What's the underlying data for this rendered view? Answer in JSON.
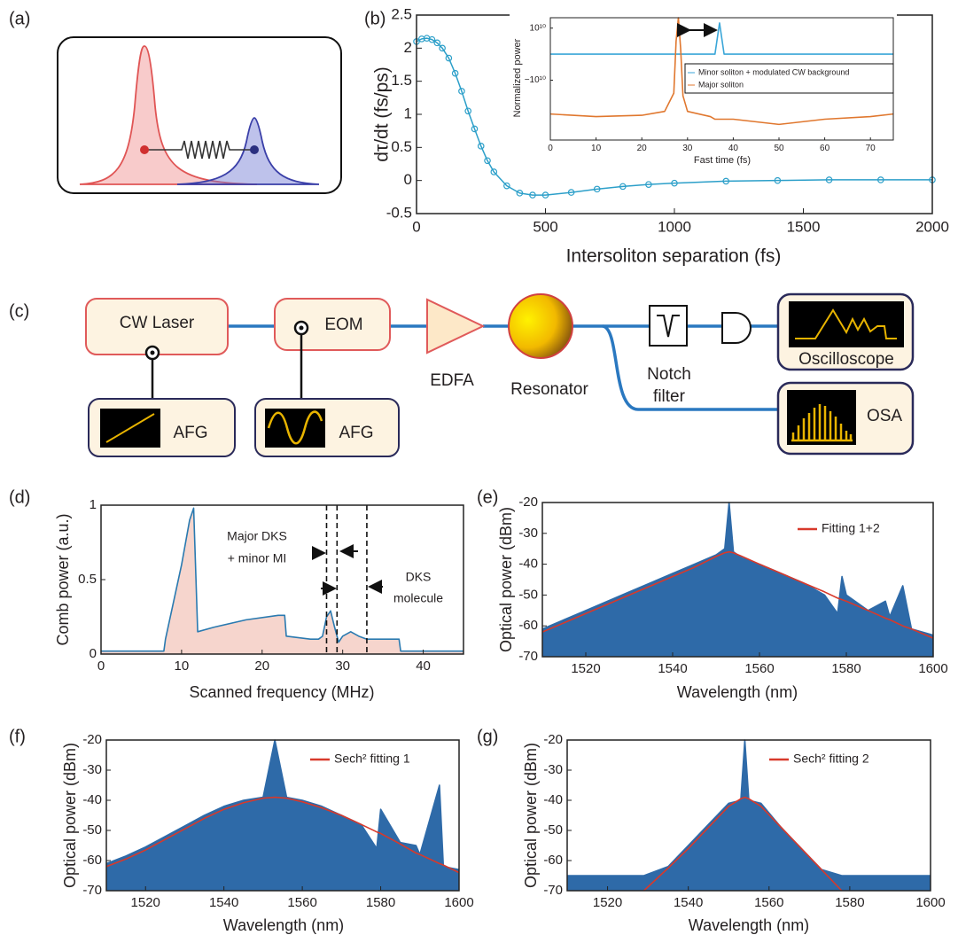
{
  "panel_labels": [
    "(a)",
    "(b)",
    "(c)",
    "(d)",
    "(e)",
    "(f)",
    "(g)"
  ],
  "diagram": {
    "cw_laser": "CW Laser",
    "eom": "EOM",
    "edfa": "EDFA",
    "resonator": "Resonator",
    "notch_filter": [
      "Notch",
      "filter"
    ],
    "oscilloscope": "Oscilloscope",
    "osa": "OSA",
    "afg_1": "AFG",
    "afg_2": "AFG"
  },
  "chart_data": [
    {
      "type": "line",
      "xlabel": "Intersoliton separation (fs)",
      "ylabel": "dτ/dt (fs/ps)",
      "xlim": [
        0,
        2000
      ],
      "ylim": [
        -0.5,
        2.5
      ],
      "xticks": [
        0,
        500,
        1000,
        1500,
        2000
      ],
      "yticks": [
        -0.5,
        0,
        0.5,
        1,
        1.5,
        2,
        2.5
      ],
      "x": [
        0,
        20,
        40,
        60,
        80,
        100,
        125,
        150,
        175,
        200,
        225,
        250,
        275,
        300,
        350,
        400,
        450,
        500,
        600,
        700,
        800,
        900,
        1000,
        1200,
        1400,
        1600,
        1800,
        2000
      ],
      "series": [
        {
          "color": "#2c9fc9",
          "marker": "circle",
          "values": [
            2.1,
            2.14,
            2.15,
            2.13,
            2.08,
            2.0,
            1.85,
            1.62,
            1.35,
            1.05,
            0.78,
            0.52,
            0.3,
            0.13,
            -0.08,
            -0.19,
            -0.22,
            -0.22,
            -0.18,
            -0.13,
            -0.09,
            -0.06,
            -0.04,
            -0.01,
            0.0,
            0.01,
            0.01,
            0.01
          ]
        }
      ]
    },
    {
      "type": "line",
      "xlabel": "Fast time (fs)",
      "ylabel": "Normalized power",
      "xlim": [
        0,
        75
      ],
      "ylim": [
        -33000000000.0,
        14000000000.0
      ],
      "xticks": [
        0,
        10,
        20,
        30,
        40,
        50,
        60,
        70
      ],
      "yticks": [
        {
          "value": 10000000000.0,
          "label": "10¹⁰"
        },
        {
          "value": -10000000000.0,
          "label": "−10¹⁰"
        }
      ],
      "x": [
        0,
        10,
        20,
        25,
        27,
        27.5,
        28,
        28.5,
        29,
        30,
        35,
        36,
        37,
        38,
        39,
        40,
        50,
        60,
        70,
        75
      ],
      "series": [
        {
          "name": "Minor soliton + modulated CW background",
          "color": "#3aa6d8",
          "values": [
            0,
            0,
            0,
            0,
            0,
            0,
            0,
            0,
            0,
            0,
            0,
            0,
            12000000000.0,
            0,
            0,
            0,
            0,
            0,
            0,
            0
          ]
        },
        {
          "name": "Major soliton",
          "color": "#e0772e",
          "values": [
            -23000000000.0,
            -24000000000.0,
            -23500000000.0,
            -22000000000.0,
            -15000000000.0,
            5000000000.0,
            14000000000.0,
            2000000000.0,
            -16000000000.0,
            -22000000000.0,
            -24000000000.0,
            -25000000000.0,
            -25000000000.0,
            -25000000000.0,
            -25000000000.0,
            -25000000000.0,
            -27000000000.0,
            -25000000000.0,
            -24000000000.0,
            -23000000000.0
          ]
        }
      ]
    },
    {
      "type": "area",
      "xlabel": "Scanned frequency  (MHz)",
      "ylabel": "Comb power (a.u.)",
      "xlim": [
        0,
        45
      ],
      "ylim": [
        0,
        1
      ],
      "xticks": [
        0,
        10,
        20,
        30,
        40
      ],
      "yticks": [
        0,
        0.5,
        1
      ],
      "vlines": [
        28,
        29.3,
        33
      ],
      "annotations": [
        [
          "Major DKS",
          "+ minor MI"
        ],
        [
          "DKS",
          "molecule"
        ]
      ],
      "x": [
        0,
        7.8,
        8,
        10,
        11,
        11.5,
        12,
        14,
        18,
        22,
        22.8,
        23,
        26,
        27,
        27.5,
        28,
        28.5,
        29,
        29.5,
        30,
        31,
        32,
        33,
        37,
        37.2,
        45
      ],
      "series": [
        {
          "color": "#2a7ab0",
          "fill": "#f5d0c8",
          "values": [
            0.02,
            0.02,
            0.1,
            0.6,
            0.9,
            0.98,
            0.15,
            0.18,
            0.23,
            0.26,
            0.26,
            0.12,
            0.1,
            0.1,
            0.12,
            0.25,
            0.29,
            0.18,
            0.08,
            0.12,
            0.15,
            0.12,
            0.1,
            0.1,
            0.02,
            0.02
          ]
        }
      ]
    },
    {
      "type": "area",
      "xlabel": "Wavelength  (nm)",
      "ylabel": "Optical power (dBm)",
      "xlim": [
        1510,
        1600
      ],
      "ylim": [
        -70,
        -20
      ],
      "xticks": [
        1520,
        1540,
        1560,
        1580,
        1600
      ],
      "yticks": [
        -70,
        -60,
        -50,
        -40,
        -30,
        -20
      ],
      "x": [
        1510,
        1515,
        1520,
        1525,
        1530,
        1535,
        1540,
        1545,
        1550,
        1552,
        1553,
        1554,
        1556,
        1560,
        1565,
        1570,
        1575,
        1578,
        1579,
        1580,
        1585,
        1589,
        1590,
        1593,
        1595,
        1600
      ],
      "series": [
        {
          "color": "#2e6aa8",
          "fill": "#2e6aa8",
          "values": [
            -61,
            -58,
            -55,
            -52,
            -49,
            -46,
            -43,
            -40,
            -37,
            -35,
            -20,
            -36,
            -38,
            -40,
            -43,
            -46,
            -50,
            -56,
            -44,
            -50,
            -55,
            -52,
            -57,
            -47,
            -61,
            -63
          ]
        },
        {
          "name": "Fitting 1+2",
          "color": "#d8392b",
          "values": [
            -62,
            -59,
            -56,
            -53,
            -50,
            -47,
            -44,
            -41,
            -37.5,
            -36.3,
            -36,
            -36.3,
            -37.5,
            -40,
            -43,
            -46,
            -49,
            -51,
            -51.5,
            -52,
            -55,
            -57.5,
            -58,
            -60,
            -61,
            -64
          ]
        }
      ]
    },
    {
      "type": "area",
      "xlabel": "Wavelength  (nm)",
      "ylabel": "Optical power (dBm)",
      "xlim": [
        1510,
        1600
      ],
      "ylim": [
        -70,
        -20
      ],
      "xticks": [
        1520,
        1540,
        1560,
        1580,
        1600
      ],
      "yticks": [
        -70,
        -60,
        -50,
        -40,
        -30,
        -20
      ],
      "x": [
        1510,
        1515,
        1520,
        1525,
        1530,
        1535,
        1540,
        1545,
        1550,
        1553,
        1556,
        1560,
        1565,
        1570,
        1575,
        1579,
        1580,
        1585,
        1589,
        1590,
        1595,
        1596,
        1600
      ],
      "series": [
        {
          "color": "#2e6aa8",
          "fill": "#2e6aa8",
          "values": [
            -61,
            -58.5,
            -55.5,
            -52,
            -48.5,
            -45,
            -42,
            -40,
            -39,
            -20,
            -39,
            -40,
            -42,
            -45,
            -48,
            -56,
            -43,
            -54,
            -55,
            -58,
            -35,
            -62,
            -63
          ]
        },
        {
          "name": "Sech² fitting 1",
          "color": "#d8392b",
          "values": [
            -62,
            -59.5,
            -56.5,
            -53,
            -49.5,
            -46,
            -43,
            -40.8,
            -39.3,
            -39,
            -39.3,
            -40.5,
            -42.5,
            -45,
            -48,
            -50.5,
            -51,
            -54.5,
            -57.5,
            -58,
            -61,
            -61.5,
            -64
          ]
        }
      ]
    },
    {
      "type": "area",
      "xlabel": "Wavelength  (nm)",
      "ylabel": "Optical power (dBm)",
      "xlim": [
        1510,
        1600
      ],
      "ylim": [
        -70,
        -20
      ],
      "xticks": [
        1520,
        1540,
        1560,
        1580,
        1600
      ],
      "yticks": [
        -70,
        -60,
        -50,
        -40,
        -30,
        -20
      ],
      "x": [
        1510,
        1520,
        1529,
        1535,
        1540,
        1545,
        1550,
        1553,
        1554,
        1555,
        1558,
        1563,
        1568,
        1573,
        1578,
        1590,
        1600
      ],
      "series": [
        {
          "color": "#2e6aa8",
          "fill": "#2e6aa8",
          "values": [
            -65,
            -65,
            -65,
            -62,
            -55,
            -48,
            -41,
            -40,
            -20,
            -40,
            -41,
            -49,
            -56,
            -63,
            -65,
            -65,
            -65
          ]
        },
        {
          "name": "Sech² fitting 2",
          "color": "#d8392b",
          "values": [
            null,
            null,
            -70,
            -62.5,
            -56,
            -49,
            -42,
            -39.5,
            -39,
            -39.5,
            -42,
            -49,
            -56,
            -63,
            -70,
            null,
            null
          ]
        }
      ]
    }
  ]
}
